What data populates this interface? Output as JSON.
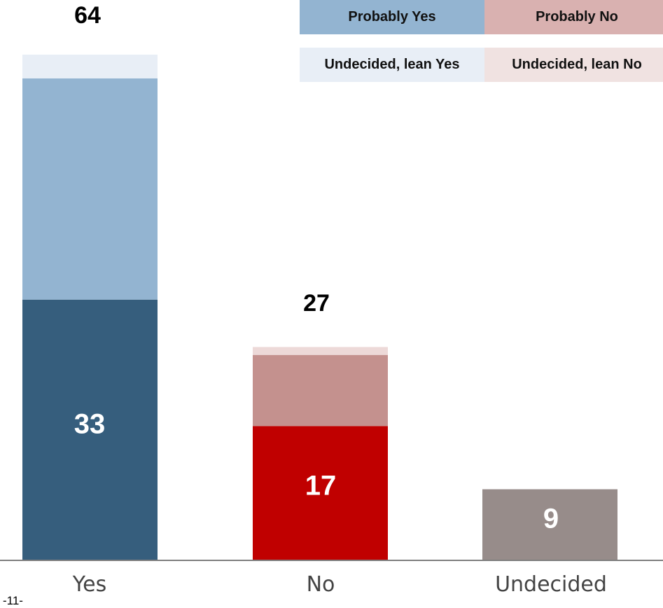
{
  "page_number": "-11-",
  "legend": {
    "probably_yes": "Probably Yes",
    "probably_no": "Probably No",
    "lean_yes": "Undecided, lean Yes",
    "lean_no": "Undecided, lean No"
  },
  "colors": {
    "yes_solid": "#365e7d",
    "probably_yes": "#93b4d1",
    "lean_yes": "#e8eef6",
    "no_solid": "#c00000",
    "probably_no": "#c4918e",
    "lean_no": "#edd9d8",
    "undecided": "#978c8a",
    "axis": "#7f7f7f"
  },
  "chart_data": {
    "type": "bar",
    "stacked": true,
    "categories": [
      "Yes",
      "No",
      "Undecided"
    ],
    "totals": [
      64,
      27,
      9
    ],
    "total_labels": [
      "64",
      "27",
      ""
    ],
    "base_labels": [
      "33",
      "17",
      "9"
    ],
    "series": [
      {
        "values": [
          33,
          17,
          9
        ]
      },
      {
        "name": "Probably Yes / Probably No",
        "values": [
          28,
          9,
          0
        ]
      },
      {
        "name": "Undecided, lean Yes / Undecided, lean No",
        "values": [
          3,
          1,
          0
        ]
      }
    ],
    "ylim": [
      0,
      64
    ],
    "grid": false,
    "legend_position": "top-right"
  }
}
